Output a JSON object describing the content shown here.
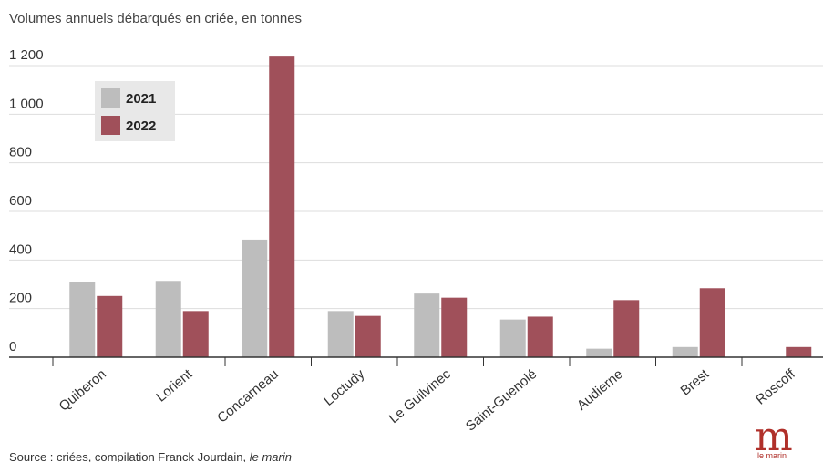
{
  "chart_data": {
    "type": "bar",
    "title": "Volumes annuels débarqués en criée, en tonnes",
    "categories": [
      "Quiberon",
      "Lorient",
      "Concarneau",
      "Loctudy",
      "Le Guilvinec",
      "Saint-Guenolé",
      "Audierne",
      "Brest",
      "Roscoff"
    ],
    "series": [
      {
        "name": "2021",
        "color": "#bdbdbd",
        "values": [
          308,
          314,
          484,
          190,
          262,
          155,
          35,
          42,
          0
        ]
      },
      {
        "name": "2022",
        "color": "#a0505a",
        "values": [
          252,
          190,
          1237,
          170,
          245,
          167,
          235,
          284,
          42
        ]
      }
    ],
    "yticks": [
      {
        "value": 0,
        "label": "0"
      },
      {
        "value": 200,
        "label": "200"
      },
      {
        "value": 400,
        "label": "400"
      },
      {
        "value": 600,
        "label": "600"
      },
      {
        "value": 800,
        "label": "800"
      },
      {
        "value": 1000,
        "label": "1 000"
      },
      {
        "value": 1200,
        "label": "1 200"
      }
    ],
    "ylim": [
      0,
      1200
    ],
    "grid": true,
    "legend_position": "top-left"
  },
  "source": {
    "text": "Source : criées, compilation Franck Jourdain, ",
    "italic": "le marin"
  },
  "logo": {
    "letter": "m",
    "text": "le marin"
  }
}
